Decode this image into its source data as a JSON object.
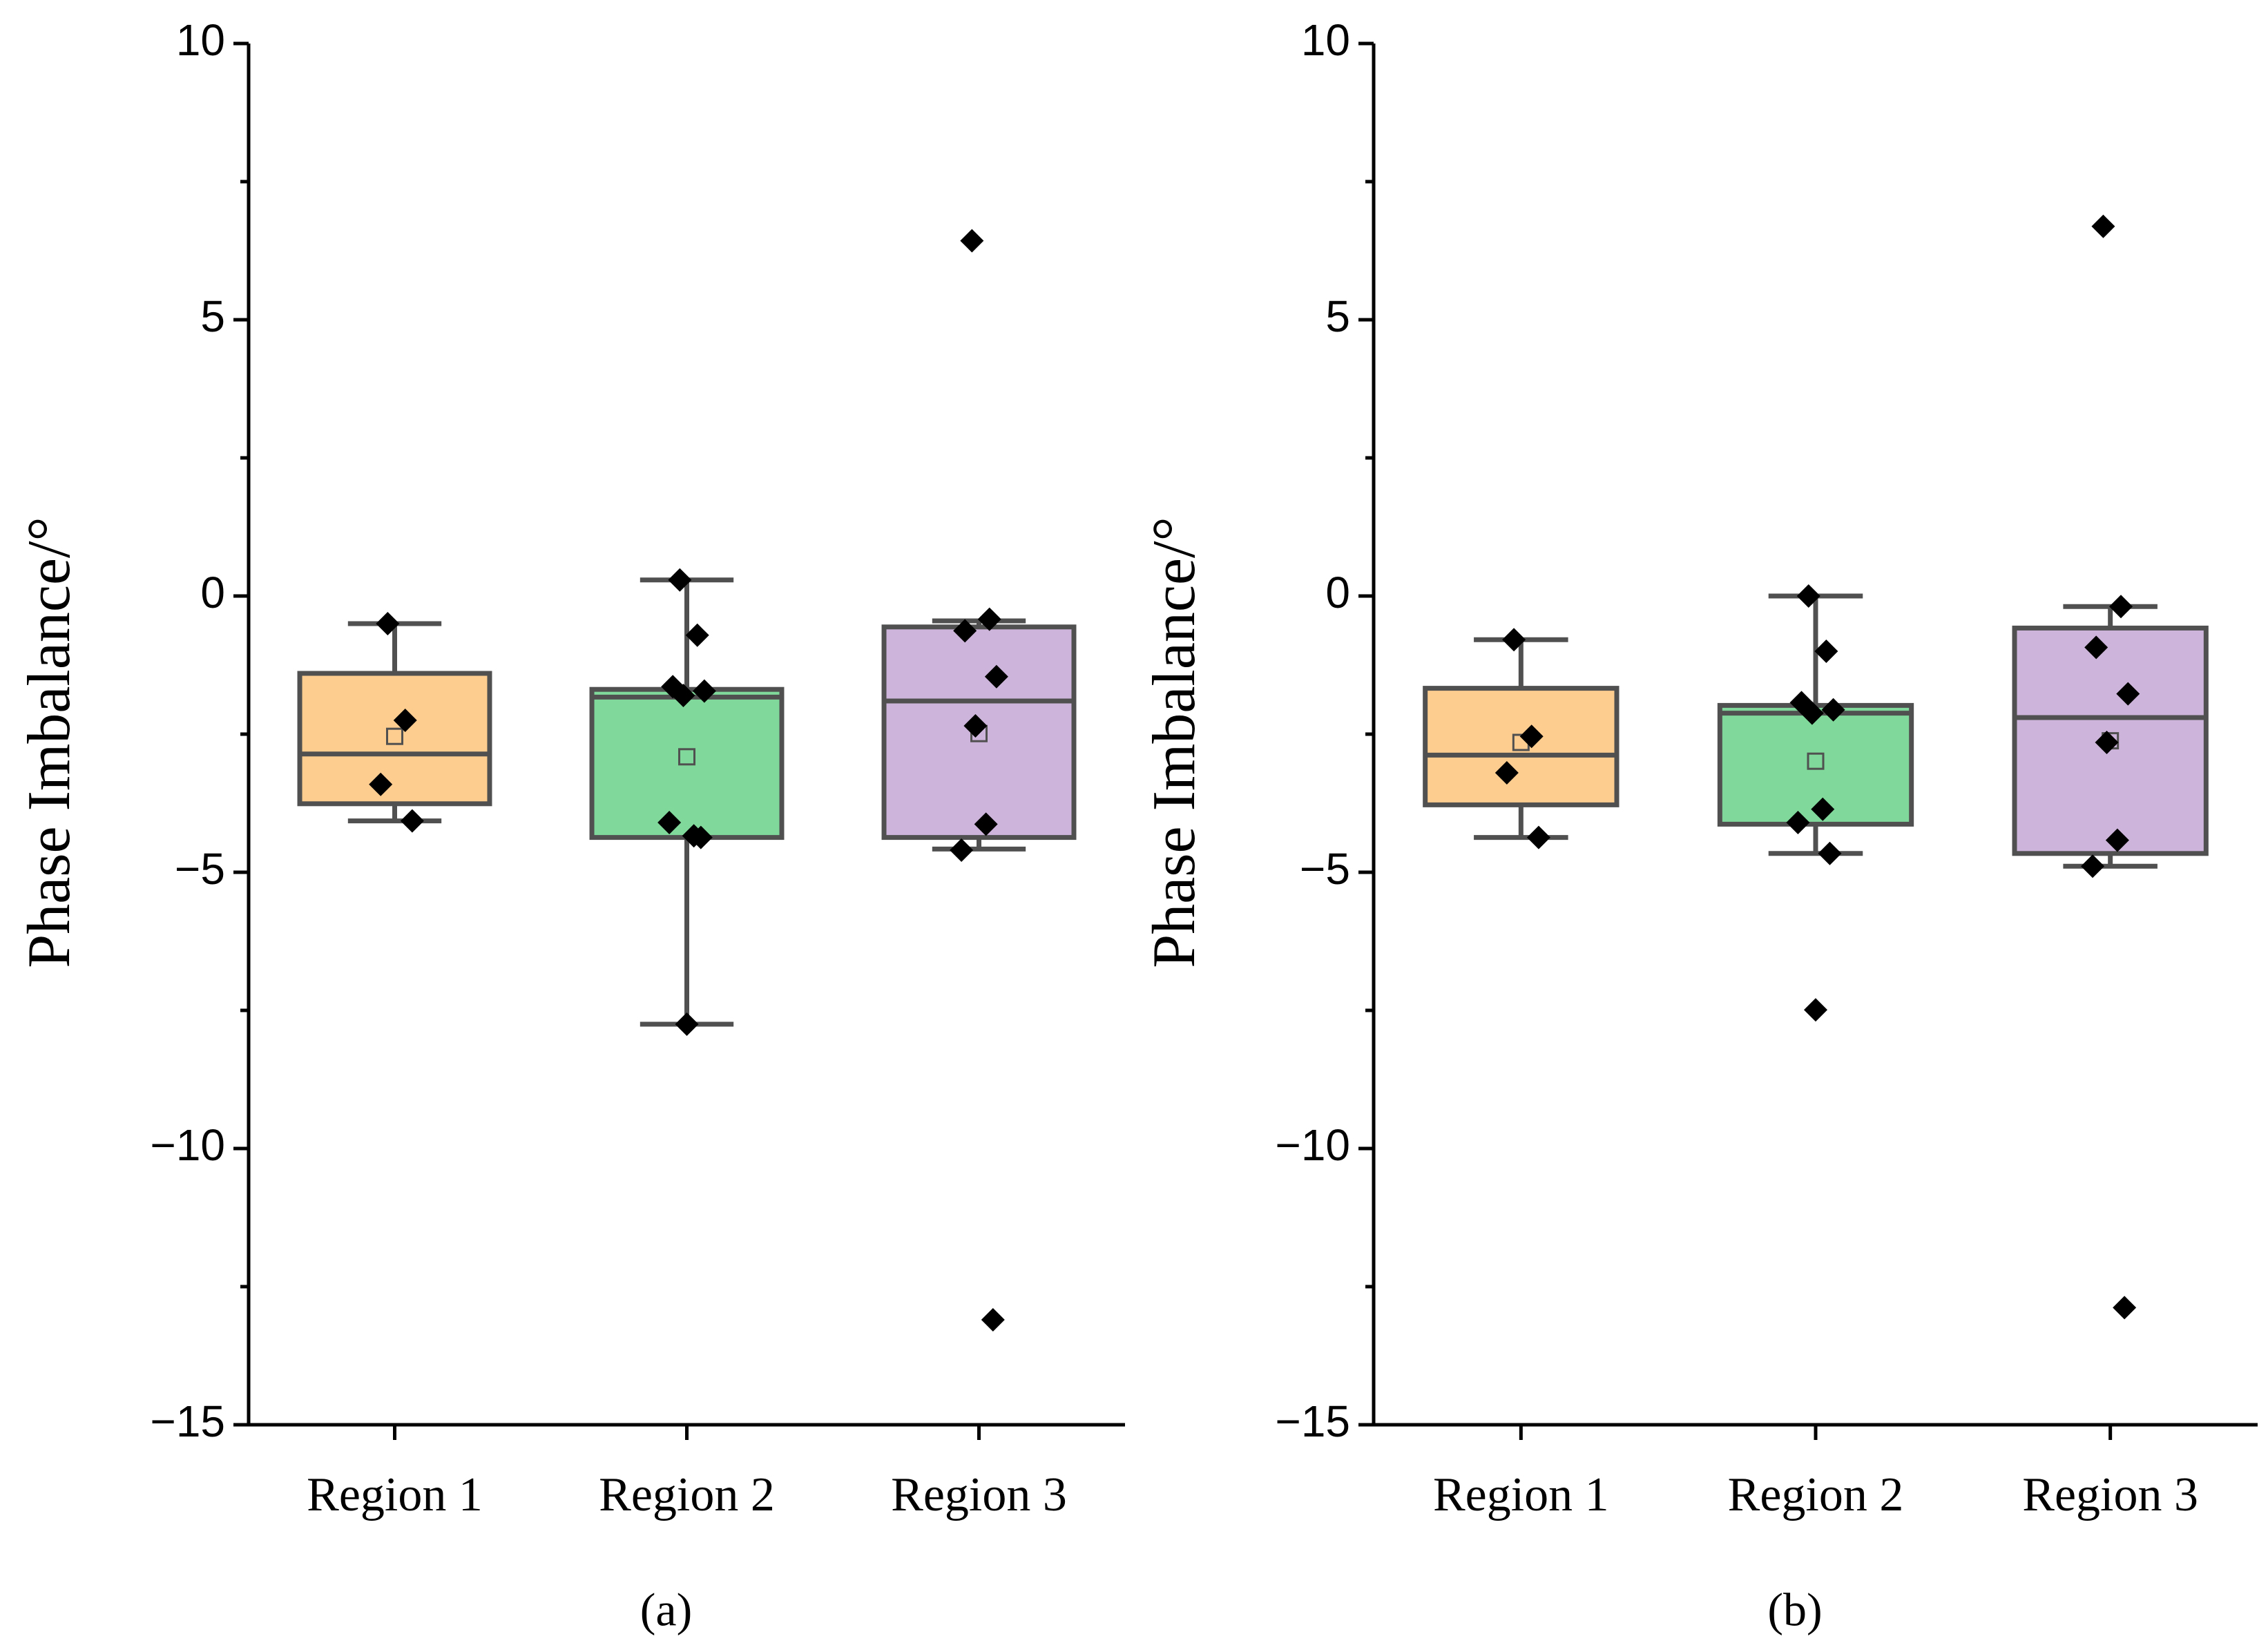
{
  "chart_data": [
    {
      "type": "box",
      "label": "(a)",
      "ylabel": "Phase Imbalance/°",
      "categories": [
        "Region 1",
        "Region 2",
        "Region 3"
      ],
      "ylim": [
        -15,
        10
      ],
      "yticks": [
        {
          "value": -15,
          "label": "−15"
        },
        {
          "value": -10,
          "label": "−10"
        },
        {
          "value": -5,
          "label": "−5"
        },
        0,
        5,
        10
      ],
      "minor_yticks": [
        -12.5,
        -7.5,
        -2.5,
        2.5,
        7.5
      ],
      "boxes": [
        {
          "color": "#fdcd8f",
          "whisker_low": -4.07,
          "q1": -3.76,
          "median": -2.86,
          "q3": -1.4,
          "whisker_high": -0.5,
          "mean": -2.54,
          "points": [
            -0.5,
            -2.25,
            -3.41,
            -4.07
          ]
        },
        {
          "color": "#80d99b",
          "whisker_low": -7.75,
          "q1": -4.37,
          "median": -1.83,
          "q3": -1.69,
          "whisker_high": 0.29,
          "mean": -2.91,
          "points": [
            0.29,
            -0.71,
            -1.64,
            -1.72,
            -1.8,
            -4.34,
            -4.1,
            -4.37,
            -7.75
          ]
        },
        {
          "color": "#cdb4da",
          "whisker_low": -4.58,
          "q1": -4.37,
          "median": -1.9,
          "q3": -0.56,
          "whisker_high": -0.45,
          "mean": -2.49,
          "points": [
            6.43,
            -0.42,
            -0.63,
            -1.46,
            -2.35,
            -4.13,
            -4.6,
            -13.1
          ]
        }
      ]
    },
    {
      "type": "box",
      "label": "(b)",
      "ylabel": "Phase Imbalance/°",
      "categories": [
        "Region 1",
        "Region 2",
        "Region 3"
      ],
      "ylim": [
        -15,
        10
      ],
      "yticks": [
        {
          "value": -15,
          "label": "−15"
        },
        {
          "value": -10,
          "label": "−10"
        },
        {
          "value": -5,
          "label": "−5"
        },
        0,
        5,
        10
      ],
      "minor_yticks": [
        -12.5,
        -7.5,
        -2.5,
        2.5,
        7.5
      ],
      "boxes": [
        {
          "color": "#fdcd8f",
          "whisker_low": -4.37,
          "q1": -3.78,
          "median": -2.88,
          "q3": -1.67,
          "whisker_high": -0.79,
          "mean": -2.65,
          "points": [
            -0.79,
            -2.54,
            -3.2,
            -4.37
          ]
        },
        {
          "color": "#80d99b",
          "whisker_low": -4.66,
          "q1": -4.13,
          "median": -2.12,
          "q3": -1.98,
          "whisker_high": 0,
          "mean": -2.99,
          "points": [
            0,
            -1.0,
            -1.93,
            -2.06,
            -2.12,
            -3.86,
            -4.1,
            -4.66,
            -7.49
          ]
        },
        {
          "color": "#cdb4da",
          "whisker_low": -4.89,
          "q1": -4.66,
          "median": -2.2,
          "q3": -0.58,
          "whisker_high": -0.19,
          "mean": -2.62,
          "points": [
            6.69,
            -0.19,
            -0.93,
            -1.77,
            -2.65,
            -4.42,
            -4.89,
            -12.88
          ]
        }
      ]
    }
  ]
}
